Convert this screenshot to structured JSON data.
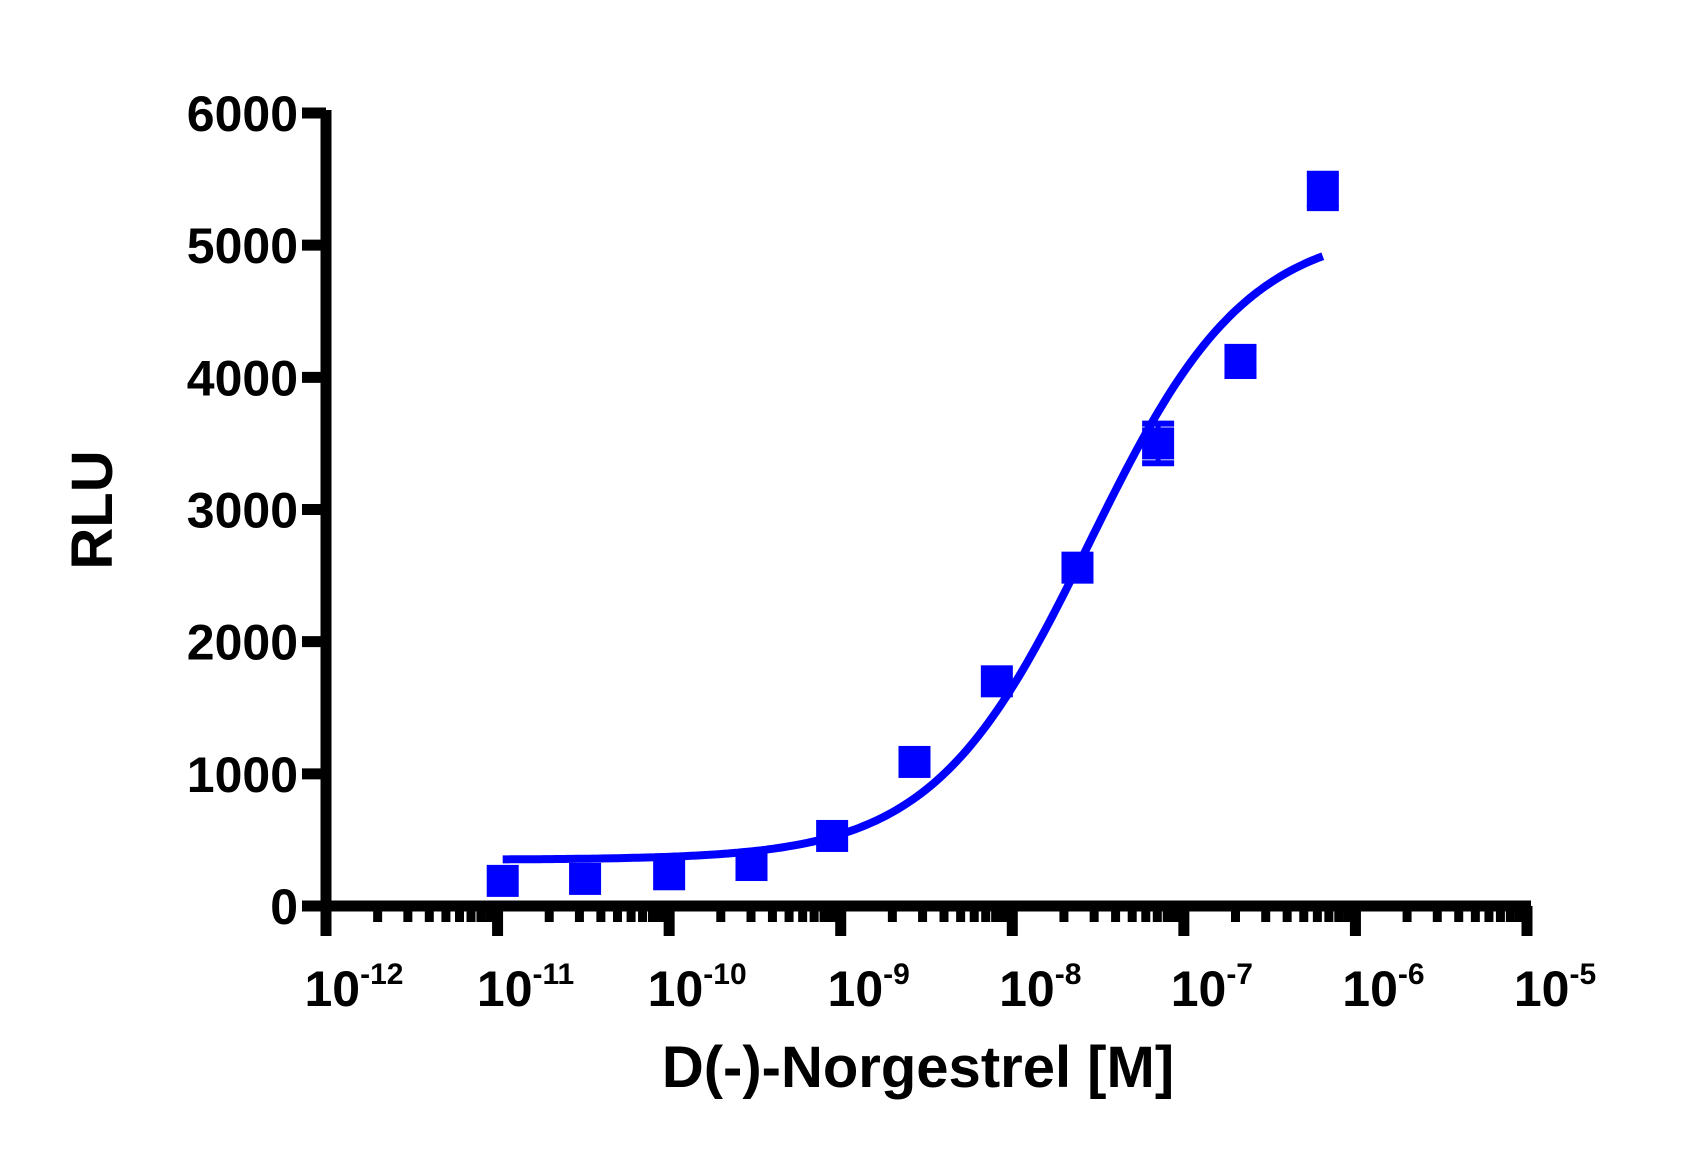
{
  "chart_data": {
    "type": "scatter",
    "title": "",
    "xlabel": "D(-)-Norgestrel [M]",
    "ylabel": "RLU",
    "xscale": "log",
    "xlim_log10": [
      -12,
      -5
    ],
    "ylim": [
      0,
      6000
    ],
    "grid": false,
    "legend": null,
    "x_tick_labels": [
      "10-12",
      "10-11",
      "10-10",
      "10-9",
      "10-8",
      "10-7",
      "10-6",
      "10-5"
    ],
    "x_tick_exponents": [
      -12,
      -11,
      -10,
      -9,
      -8,
      -7,
      -6,
      -5
    ],
    "y_ticks": [
      0,
      1000,
      2000,
      3000,
      4000,
      5000,
      6000
    ],
    "y_tick_labels": [
      "0",
      "1000",
      "2000",
      "3000",
      "4000",
      "5000",
      "6000"
    ],
    "series": [
      {
        "name": "D(-)-Norgestrel",
        "color": "#0000ff",
        "marker": "square",
        "log10_x": [
          -10.97,
          -10.49,
          -10.0,
          -9.52,
          -9.05,
          -8.57,
          -8.09,
          -7.62,
          -7.15,
          -6.67,
          -6.19
        ],
        "y": [
          190,
          205,
          240,
          310,
          530,
          1090,
          1700,
          2560,
          3500,
          4120,
          5410
        ],
        "y_err": [
          40,
          40,
          40,
          40,
          40,
          60,
          60,
          60,
          150,
          110,
          130
        ]
      }
    ],
    "fit": {
      "type": "four-parameter logistic",
      "color": "#0000ff",
      "bottom": 350,
      "top": 5150,
      "log_ec50": -7.55,
      "hill": 0.95,
      "x_range_log10": [
        -10.97,
        -6.19
      ]
    }
  }
}
